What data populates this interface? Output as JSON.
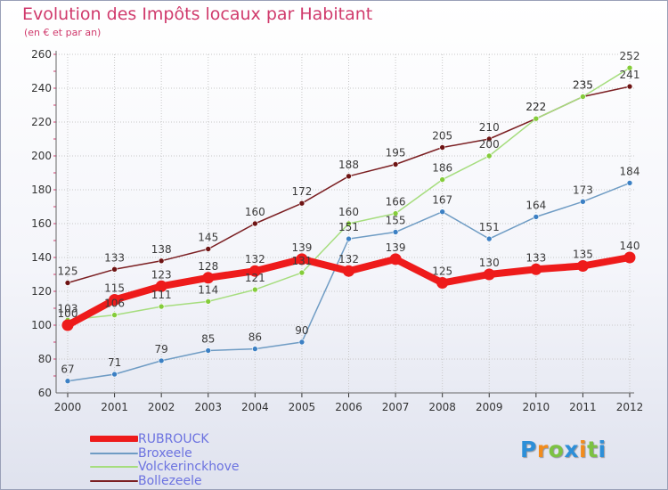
{
  "title": "Evolution des Impôts locaux par Habitant",
  "subtitle": "(en € et par an)",
  "colors": {
    "title": "#d03a6c",
    "legend_text": "#6b72e0"
  },
  "chart_data": {
    "type": "line",
    "title": "Evolution des Impôts locaux par Habitant",
    "ylabel": "(en € et par an)",
    "xlabel": "",
    "ylim": [
      60,
      260
    ],
    "yticks": [
      60,
      80,
      100,
      120,
      140,
      160,
      180,
      200,
      220,
      240,
      260
    ],
    "x": [
      "2000",
      "2001",
      "2002",
      "2003",
      "2004",
      "2005",
      "2006",
      "2007",
      "2008",
      "2009",
      "2010",
      "2011",
      "2012"
    ],
    "grid": true,
    "legend": "bottom-left",
    "series": [
      {
        "name": "Bollezeele",
        "color": "#7b1f22",
        "dot": "#6e1414",
        "values": [
          125,
          133,
          138,
          145,
          160,
          172,
          188,
          195,
          205,
          210,
          222,
          235,
          241
        ]
      },
      {
        "name": "Volckerinckhove",
        "color": "#a6dd7e",
        "dot": "#84cc3a",
        "values": [
          103,
          106,
          111,
          114,
          121,
          131,
          160,
          166,
          186,
          200,
          222,
          235,
          252
        ]
      },
      {
        "name": "Broxeele",
        "color": "#6f9cc4",
        "dot": "#3c80c4",
        "values": [
          67,
          71,
          79,
          85,
          86,
          90,
          151,
          155,
          167,
          151,
          164,
          173,
          184
        ]
      },
      {
        "name": "RUBROUCK",
        "color": "#ee1b1b",
        "dot": "#ee1b1b",
        "thick": true,
        "values": [
          100,
          115,
          123,
          128,
          132,
          139,
          132,
          139,
          125,
          130,
          133,
          135,
          140
        ]
      }
    ]
  },
  "legend": [
    {
      "name": "RUBROUCK",
      "color": "#ee1b1b"
    },
    {
      "name": "Broxeele",
      "color": "#6f9cc4"
    },
    {
      "name": "Volckerinckhove",
      "color": "#a6dd7e"
    },
    {
      "name": "Bollezeele",
      "color": "#7b1f22"
    }
  ],
  "logo": {
    "text": [
      "P",
      "r",
      "o",
      "x",
      "i",
      "t",
      "i"
    ],
    "colors": [
      "#2d8fd8",
      "#f28c1c",
      "#7cc242",
      "#2d8fd8",
      "#f28c1c",
      "#7cc242",
      "#2d8fd8"
    ]
  }
}
